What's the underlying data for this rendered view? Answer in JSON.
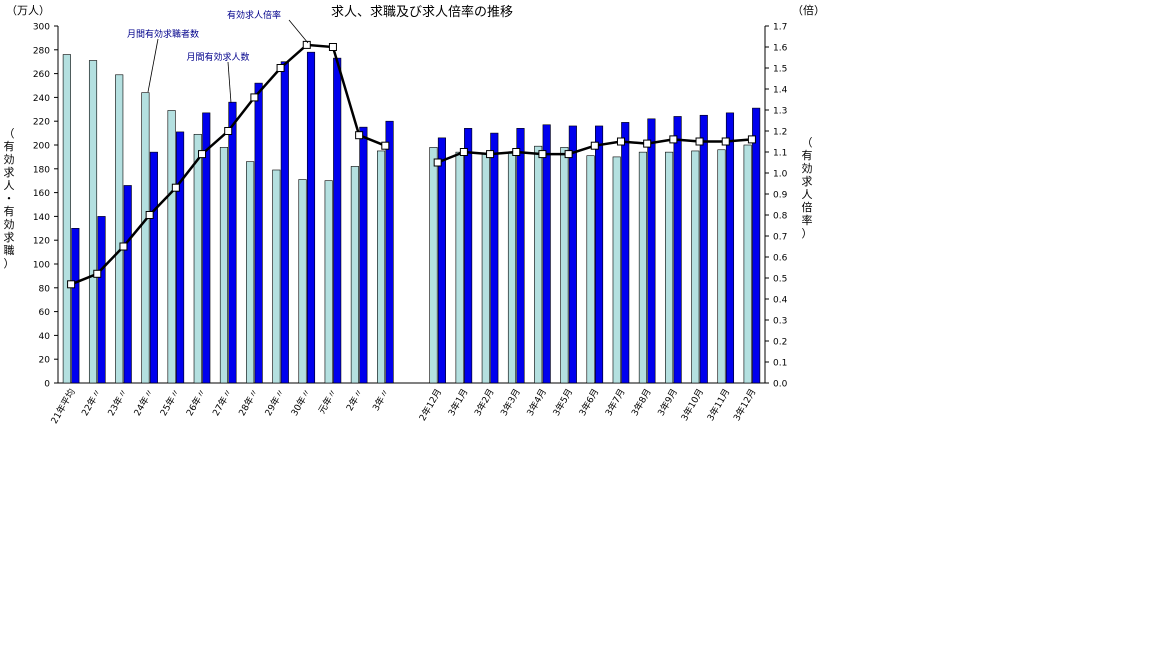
{
  "chart_data": {
    "type": "bar",
    "title": "求人、求職及び求人倍率の推移",
    "left_axis": {
      "unit": "（万人）",
      "label": "（有効求人・有効求職）",
      "ylim": [
        0,
        300
      ],
      "ticks": [
        "0",
        "20",
        "40",
        "60",
        "80",
        "100",
        "120",
        "140",
        "160",
        "180",
        "200",
        "220",
        "240",
        "260",
        "280",
        "300"
      ]
    },
    "right_axis": {
      "unit": "（倍）",
      "label": "（有効求人倍率）",
      "ylim": [
        0.0,
        1.7
      ],
      "ticks": [
        "0.0",
        "0.1",
        "0.2",
        "0.3",
        "0.4",
        "0.5",
        "0.6",
        "0.7",
        "0.8",
        "0.9",
        "1.0",
        "1.1",
        "1.2",
        "1.3",
        "1.4",
        "1.5",
        "1.6",
        "1.7"
      ]
    },
    "categories": [
      "21年平均",
      "22年〃",
      "23年〃",
      "24年〃",
      "25年〃",
      "26年〃",
      "27年〃",
      "28年〃",
      "29年〃",
      "30年〃",
      "元年〃",
      "2年〃",
      "3年〃",
      "",
      "2年12月",
      "3年1月",
      "3年2月",
      "3年3月",
      "3年4月",
      "3年5月",
      "3年6月",
      "3年7月",
      "3年8月",
      "3年9月",
      "3年10月",
      "3年11月",
      "3年12月"
    ],
    "series": [
      {
        "name": "月間有効求職者数",
        "type": "bar",
        "color": "#b4e0e0",
        "values": [
          276,
          271,
          259,
          244,
          229,
          209,
          198,
          186,
          179,
          171,
          170,
          182,
          195,
          null,
          198,
          194,
          193,
          193,
          199,
          198,
          191,
          190,
          194,
          194,
          195,
          196,
          200
        ]
      },
      {
        "name": "月間有効求人数",
        "type": "bar",
        "color": "#0000ee",
        "values": [
          130,
          140,
          166,
          194,
          211,
          227,
          236,
          252,
          270,
          278,
          273,
          215,
          220,
          null,
          206,
          214,
          210,
          214,
          217,
          216,
          216,
          219,
          222,
          224,
          225,
          227,
          231
        ]
      },
      {
        "name": "有効求人倍率",
        "type": "line",
        "color": "#000000",
        "values": [
          0.47,
          0.52,
          0.65,
          0.8,
          0.93,
          1.09,
          1.2,
          1.36,
          1.5,
          1.61,
          1.6,
          1.18,
          1.13,
          null,
          1.05,
          1.1,
          1.09,
          1.1,
          1.09,
          1.09,
          1.13,
          1.15,
          1.14,
          1.16,
          1.15,
          1.15,
          1.16
        ]
      }
    ],
    "annotations": [
      {
        "text": "有効求人倍率",
        "series": 2,
        "index": 9
      },
      {
        "text": "月間有効求職者数",
        "series": 0,
        "index": 3
      },
      {
        "text": "月間有効求人数",
        "series": 1,
        "index": 6
      }
    ],
    "grid": false,
    "legend": "none"
  }
}
